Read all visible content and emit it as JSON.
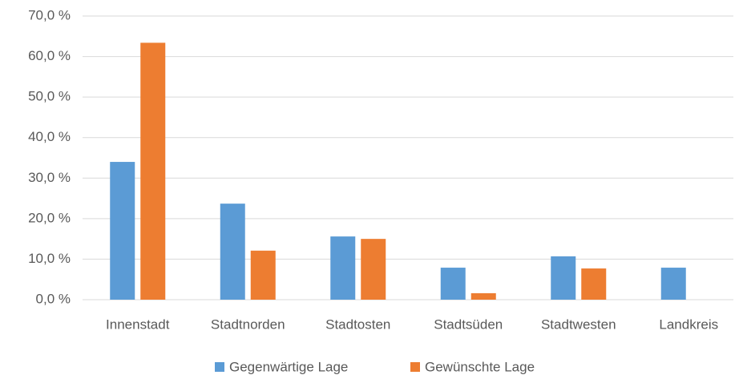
{
  "chart_data": {
    "type": "bar",
    "categories": [
      "Innenstadt",
      "Stadtnorden",
      "Stadtosten",
      "Stadtsüden",
      "Stadtwesten",
      "Landkreis"
    ],
    "series": [
      {
        "name": "Gegenwärtige Lage",
        "color": "#5b9bd5",
        "values": [
          34.0,
          23.7,
          15.6,
          7.9,
          10.7,
          7.9
        ]
      },
      {
        "name": "Gewünschte Lage",
        "color": "#ed7d31",
        "values": [
          63.4,
          12.1,
          15.0,
          1.6,
          7.7,
          0
        ]
      }
    ],
    "ylim": [
      0,
      70
    ],
    "yticks": [
      {
        "value": 0,
        "label": "0,0 %"
      },
      {
        "value": 10,
        "label": "10,0 %"
      },
      {
        "value": 20,
        "label": "20,0 %"
      },
      {
        "value": 30,
        "label": "30,0 %"
      },
      {
        "value": 40,
        "label": "40,0 %"
      },
      {
        "value": 50,
        "label": "50,0 %"
      },
      {
        "value": 60,
        "label": "60,0 %"
      },
      {
        "value": 70,
        "label": "70,0 %"
      }
    ],
    "grid": true,
    "legend": "bottom"
  }
}
